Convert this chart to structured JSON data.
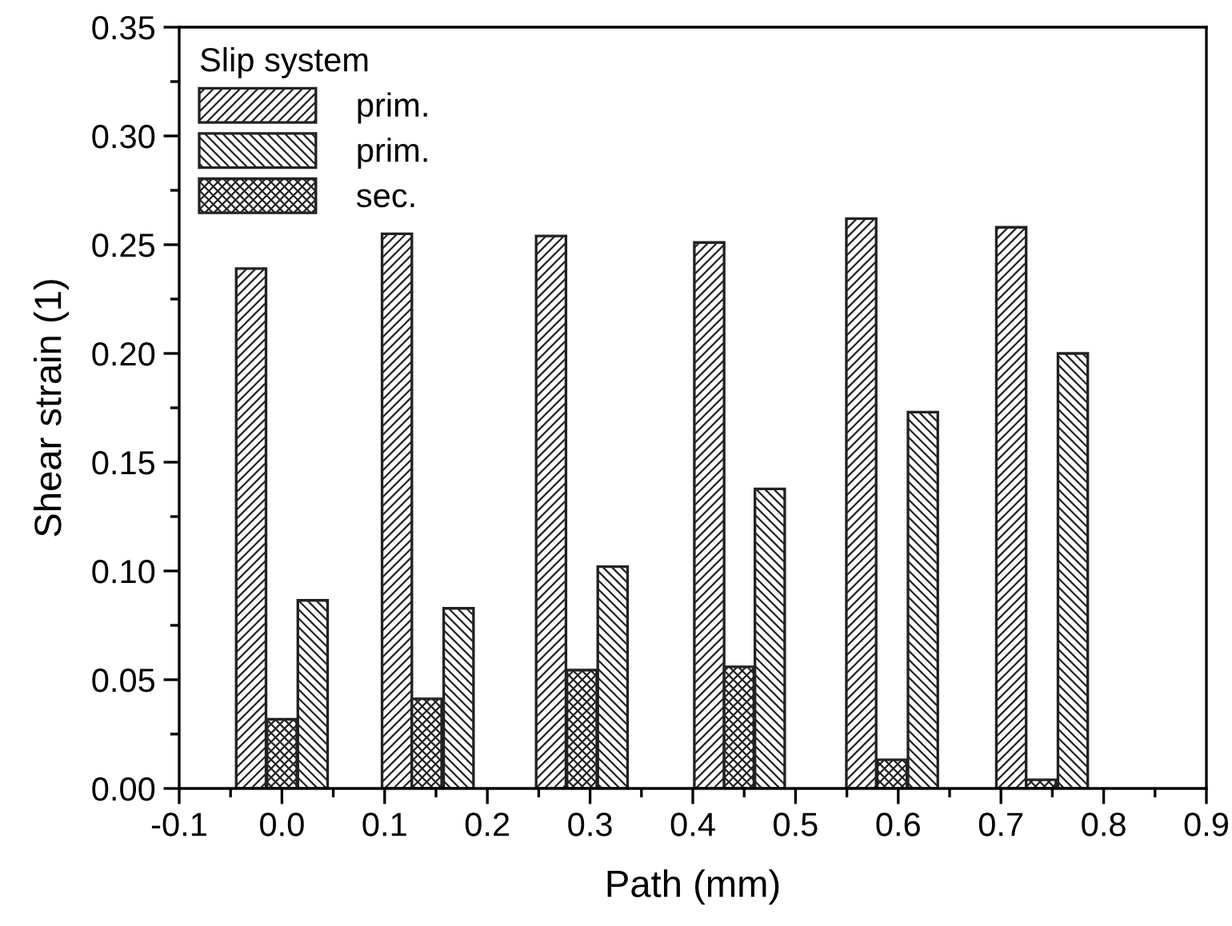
{
  "chart_data": {
    "type": "bar",
    "xlabel": "Path (mm)",
    "ylabel": "Shear strain (1)",
    "legend_title": "Slip system",
    "legend": "top left",
    "grid": false,
    "xlim": [
      -0.1,
      0.9
    ],
    "xticks": [
      -0.1,
      {
        "value": 0,
        "label": "0.0"
      },
      0.1,
      0.2,
      0.3,
      0.4,
      0.5,
      0.6,
      0.7,
      0.8,
      0.9
    ],
    "ylim": [
      0,
      0.35
    ],
    "yticks": [
      {
        "value": 0,
        "label": "0.00"
      },
      0.05,
      {
        "value": 0.1,
        "label": "0.10"
      },
      0.15,
      {
        "value": 0.2,
        "label": "0.20"
      },
      0.25,
      {
        "value": 0.3,
        "label": "0.30"
      },
      0.35
    ],
    "series": [
      {
        "name": "prim.",
        "color": "#222222",
        "x": [
          -0.03,
          0.112,
          0.262,
          0.416,
          0.564,
          0.71
        ],
        "values": [
          0.239,
          0.255,
          0.254,
          0.251,
          0.262,
          0.258
        ]
      },
      {
        "name": "prim.",
        "color": "#222222",
        "x": [
          0.03,
          0.172,
          0.322,
          0.475,
          0.624,
          0.77
        ],
        "values": [
          0.0865,
          0.0828,
          0.102,
          0.1377,
          0.173,
          0.2
        ]
      },
      {
        "name": "sec.",
        "color": "#222222",
        "x": [
          0.0,
          0.141,
          0.292,
          0.445,
          0.594,
          0.739
        ],
        "values": [
          0.0318,
          0.0412,
          0.0544,
          0.0559,
          0.0132,
          0.004
        ]
      }
    ]
  }
}
